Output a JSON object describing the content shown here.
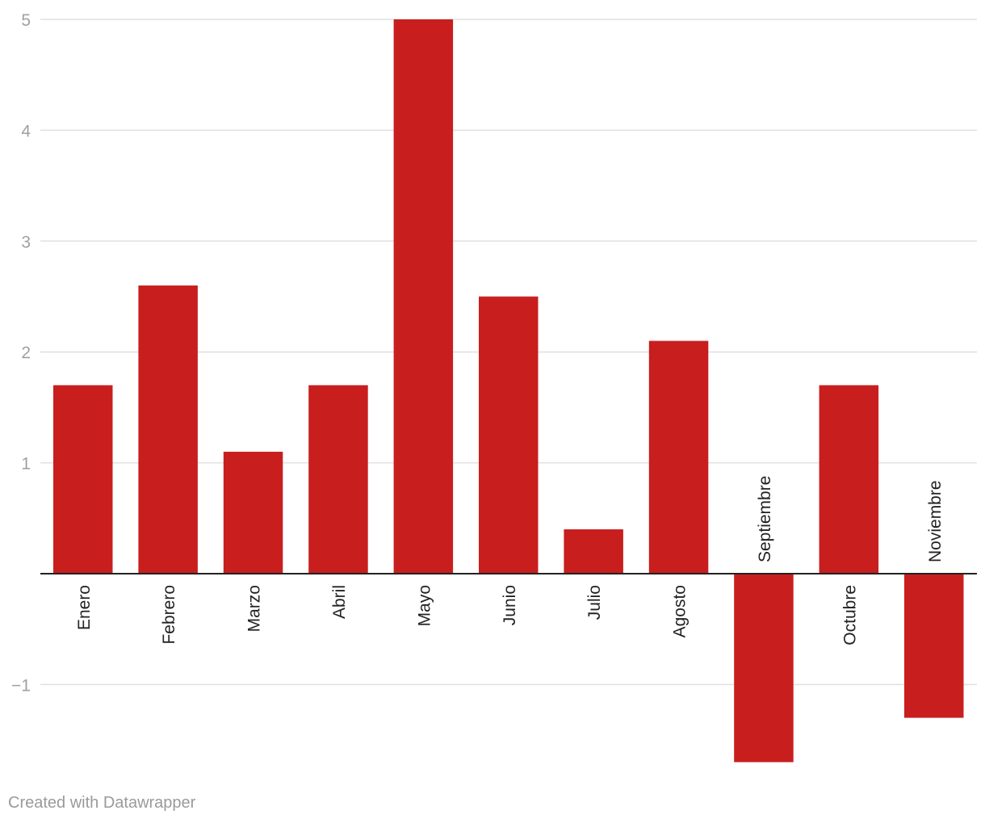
{
  "chart_data": {
    "type": "bar",
    "categories": [
      "Enero",
      "Febrero",
      "Marzo",
      "Abril",
      "Mayo",
      "Junio",
      "Julio",
      "Agosto",
      "Septiembre",
      "Octubre",
      "Noviembre"
    ],
    "values": [
      1.7,
      2.6,
      1.1,
      1.7,
      5.0,
      2.5,
      0.4,
      2.1,
      -1.7,
      1.7,
      -1.3
    ],
    "yticks": [
      5,
      4,
      3,
      2,
      1,
      -1
    ],
    "ytick_labels": [
      "5",
      "4",
      "3",
      "2",
      "1",
      "−1"
    ],
    "ylim": [
      -1.7,
      5
    ],
    "title": "",
    "xlabel": "",
    "ylabel": "",
    "grid": true,
    "bar_color": "#c81e1e",
    "gridline_color": "#e0e0e0",
    "axis_color": "#222222"
  },
  "footer": {
    "credit": "Created with Datawrapper"
  }
}
